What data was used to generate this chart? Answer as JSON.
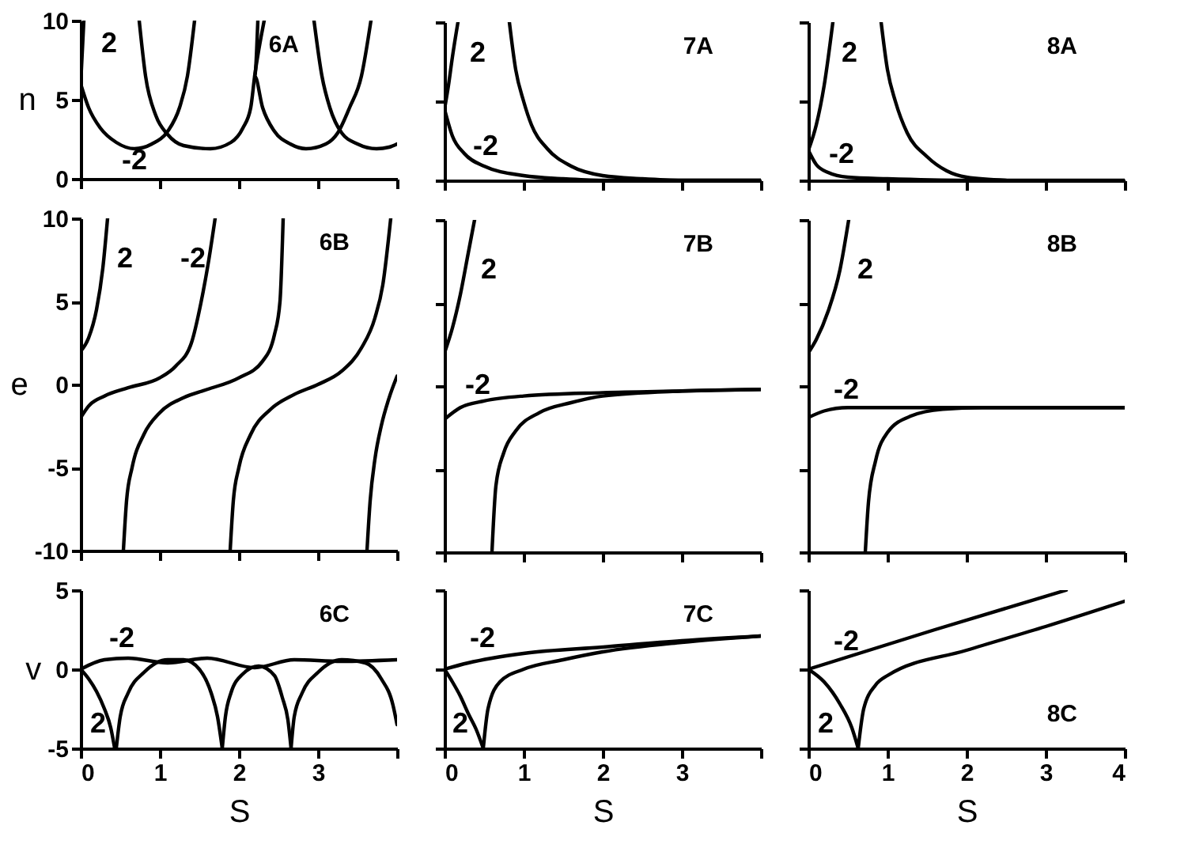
{
  "chart_data": [
    {
      "type": "line",
      "title": "6A",
      "ylabel": "n",
      "xlim": [
        0,
        4
      ],
      "ylim": [
        0,
        10
      ],
      "xticks": [
        0,
        1,
        2,
        3,
        4
      ],
      "yticks": [
        0,
        5,
        10
      ],
      "tick_labels": "y",
      "series": [
        {
          "name": "2",
          "color": "#000000",
          "x": [
            0,
            0.02,
            0.04
          ],
          "values": [
            6,
            8,
            10
          ]
        },
        {
          "name": "-2",
          "color": "#000000",
          "x": [
            0,
            0.1,
            0.25,
            0.45,
            0.68,
            0.9,
            1.1,
            1.25,
            1.35,
            1.44
          ],
          "values": [
            6,
            4.5,
            3.2,
            2.3,
            1.9,
            2.2,
            3,
            4.5,
            6.5,
            10
          ]
        },
        {
          "color": "#000000",
          "x": [
            0.74,
            0.82,
            0.95,
            1.1,
            1.3,
            1.64,
            1.9,
            2.05,
            2.15,
            2.2,
            2.32
          ],
          "values": [
            10,
            6.5,
            4,
            2.8,
            2.1,
            1.9,
            2.3,
            3.2,
            4.5,
            6.5,
            10
          ]
        },
        {
          "color": "#000000",
          "x": [
            2.24,
            2.2,
            2.3,
            2.45,
            2.65,
            2.85,
            3.1,
            3.25,
            3.4,
            3.55,
            3.67
          ],
          "values": [
            10,
            6.5,
            4.5,
            3,
            2.2,
            1.9,
            2.2,
            2.9,
            4.5,
            6.5,
            10
          ]
        },
        {
          "color": "#000000",
          "x": [
            2.95,
            3.05,
            3.15,
            3.3,
            3.5,
            3.74,
            3.9,
            4
          ],
          "values": [
            10,
            6.5,
            4.5,
            2.9,
            2.2,
            1.9,
            2,
            2.2
          ]
        }
      ]
    },
    {
      "type": "line",
      "title": "7A",
      "xlim": [
        0,
        4
      ],
      "ylim": [
        0,
        10
      ],
      "xticks": [
        0,
        1,
        2,
        3,
        4
      ],
      "yticks": [
        0,
        5,
        10
      ],
      "tick_labels": false,
      "series": [
        {
          "name": "2",
          "color": "#000000",
          "x": [
            0,
            0.05,
            0.1,
            0.17
          ],
          "values": [
            4.5,
            6,
            7.8,
            10
          ]
        },
        {
          "name": "-2",
          "color": "#000000",
          "x": [
            0,
            0.1,
            0.25,
            0.5,
            1,
            1.5,
            2,
            3,
            4
          ],
          "values": [
            4.5,
            2.8,
            1.7,
            0.9,
            0.3,
            0.1,
            0,
            0,
            0
          ]
        },
        {
          "color": "#000000",
          "x": [
            0.82,
            0.9,
            1,
            1.1,
            1.3,
            1.6,
            2,
            2.5,
            3,
            4
          ],
          "values": [
            10,
            7,
            5,
            3.5,
            2,
            0.9,
            0.3,
            0.1,
            0,
            0
          ]
        }
      ]
    },
    {
      "type": "line",
      "title": "8A",
      "xlim": [
        0,
        4
      ],
      "ylim": [
        0,
        10
      ],
      "xticks": [
        0,
        1,
        2,
        3,
        4
      ],
      "yticks": [
        0,
        5,
        10
      ],
      "tick_labels": false,
      "series": [
        {
          "name": "2",
          "color": "#000000",
          "x": [
            0,
            0.1,
            0.2,
            0.31
          ],
          "values": [
            1.9,
            3.5,
            6,
            10
          ]
        },
        {
          "name": "-2",
          "color": "#000000",
          "x": [
            0,
            0.1,
            0.25,
            0.5,
            1,
            2,
            4
          ],
          "values": [
            1.9,
            1,
            0.5,
            0.2,
            0.1,
            0,
            0
          ]
        },
        {
          "color": "#000000",
          "x": [
            0.92,
            1,
            1.1,
            1.25,
            1.5,
            1.75,
            2,
            2.5
          ],
          "values": [
            10,
            7,
            5,
            3,
            1.5,
            0.6,
            0.2,
            0
          ]
        }
      ]
    },
    {
      "type": "line",
      "title": "6B",
      "ylabel": "e",
      "xlim": [
        0,
        4
      ],
      "ylim": [
        -10,
        10
      ],
      "xticks": [
        0,
        1,
        2,
        3,
        4
      ],
      "yticks": [
        -10,
        -5,
        0,
        5,
        10
      ],
      "tick_labels": "y",
      "series": [
        {
          "name": "2",
          "color": "#000000",
          "x": [
            0,
            0.1,
            0.2,
            0.28,
            0.34
          ],
          "values": [
            2,
            2.8,
            4.5,
            7,
            10
          ]
        },
        {
          "name": "-2",
          "color": "#000000",
          "x": [
            0,
            0.1,
            0.3,
            0.6,
            1,
            1.2,
            1.4,
            1.52,
            1.62,
            1.7
          ],
          "values": [
            -2,
            -1.3,
            -0.7,
            -0.2,
            0.4,
            1.1,
            2.5,
            4.9,
            7.5,
            10
          ]
        },
        {
          "color": "#000000",
          "x": [
            0.54,
            0.58,
            0.65,
            0.8,
            1,
            1.3,
            1.6,
            2,
            2.3,
            2.45,
            2.52,
            2.56
          ],
          "values": [
            -10,
            -7,
            -5,
            -3,
            -1.7,
            -0.8,
            -0.3,
            0.4,
            1.4,
            3,
            5,
            10
          ]
        },
        {
          "color": "#000000",
          "x": [
            1.89,
            1.93,
            2,
            2.15,
            2.4,
            2.7,
            3,
            3.3,
            3.55,
            3.72,
            3.82,
            3.92
          ],
          "values": [
            -10,
            -7,
            -5,
            -3,
            -1.5,
            -0.6,
            0,
            0.8,
            2.2,
            4,
            6,
            10
          ]
        },
        {
          "color": "#000000",
          "x": [
            3.62,
            3.66,
            3.72,
            3.8,
            3.9,
            4
          ],
          "values": [
            -10,
            -7,
            -4.5,
            -2.5,
            -0.8,
            0.5
          ]
        }
      ]
    },
    {
      "type": "line",
      "title": "7B",
      "xlim": [
        0,
        4
      ],
      "ylim": [
        -10,
        10
      ],
      "xticks": [
        0,
        1,
        2,
        3,
        4
      ],
      "yticks": [
        -10,
        -5,
        0,
        5,
        10
      ],
      "tick_labels": false,
      "series": [
        {
          "name": "2",
          "color": "#000000",
          "x": [
            0,
            0.1,
            0.2,
            0.3,
            0.38
          ],
          "values": [
            2,
            3.5,
            5.5,
            8,
            10
          ]
        },
        {
          "name": "-2",
          "color": "#000000",
          "x": [
            0,
            0.2,
            0.5,
            1,
            2,
            3,
            4
          ],
          "values": [
            -2,
            -1.3,
            -0.9,
            -0.6,
            -0.4,
            -0.3,
            -0.2
          ]
        },
        {
          "color": "#000000",
          "x": [
            0.6,
            0.65,
            0.75,
            0.9,
            1.2,
            1.6,
            2,
            3,
            4
          ],
          "values": [
            -10,
            -6,
            -4,
            -2.7,
            -1.6,
            -1,
            -0.6,
            -0.3,
            -0.2
          ]
        }
      ]
    },
    {
      "type": "line",
      "title": "8B",
      "xlim": [
        0,
        4
      ],
      "ylim": [
        -10,
        10
      ],
      "xticks": [
        0,
        1,
        2,
        3,
        4
      ],
      "yticks": [
        -10,
        -5,
        0,
        5,
        10
      ],
      "tick_labels": false,
      "series": [
        {
          "name": "2",
          "color": "#000000",
          "x": [
            0,
            0.1,
            0.25,
            0.4,
            0.51
          ],
          "values": [
            2,
            2.8,
            4.5,
            7,
            10
          ]
        },
        {
          "name": "-2",
          "color": "#000000",
          "x": [
            0,
            0.2,
            0.5,
            1,
            4
          ],
          "values": [
            -1.9,
            -1.5,
            -1.3,
            -1.3,
            -1.3
          ]
        },
        {
          "color": "#000000",
          "x": [
            0.72,
            0.76,
            0.85,
            1,
            1.3,
            1.7,
            2.2,
            4
          ],
          "values": [
            -10,
            -7,
            -4.5,
            -2.8,
            -1.8,
            -1.4,
            -1.3,
            -1.3
          ]
        }
      ]
    },
    {
      "type": "line",
      "title": "6C",
      "xlabel": "S",
      "ylabel": "v",
      "xlim": [
        0,
        4
      ],
      "ylim": [
        -5,
        5
      ],
      "xticks": [
        0,
        1,
        2,
        3,
        {
          "value": 4,
          "label": null
        }
      ],
      "yticks": [
        -5,
        0,
        5
      ],
      "series": [
        {
          "name": "2",
          "color": "#000000",
          "x": [
            0,
            0.1,
            0.2,
            0.3,
            0.38,
            0.43
          ],
          "values": [
            0,
            -0.6,
            -1.4,
            -2.5,
            -3.7,
            -5
          ]
        },
        {
          "name": "-2",
          "color": "#000000",
          "x": [
            0,
            0.3,
            0.6,
            1.1,
            1.6,
            2.2,
            2.7,
            3.3,
            4
          ],
          "values": [
            0,
            0.6,
            0.7,
            0.4,
            0.7,
            0.1,
            0.6,
            0.5,
            0.6
          ]
        },
        {
          "color": "#000000",
          "x": [
            0.45,
            0.5,
            0.6,
            0.8,
            1.1,
            1.3,
            1.5,
            1.65,
            1.73,
            1.79
          ],
          "values": [
            -5,
            -3,
            -1.5,
            -0.2,
            0.6,
            0.6,
            0,
            -1.5,
            -3,
            -5
          ]
        },
        {
          "color": "#000000",
          "x": [
            1.79,
            1.83,
            1.9,
            2.05,
            2.25,
            2.45,
            2.55,
            2.62,
            2.66
          ],
          "values": [
            -5,
            -3,
            -1.5,
            -0.3,
            0.2,
            -0.4,
            -1.8,
            -3.2,
            -5
          ]
        },
        {
          "color": "#000000",
          "x": [
            2.66,
            2.7,
            2.8,
            3,
            3.3,
            3.6,
            3.8,
            3.95,
            4
          ],
          "values": [
            -5,
            -3,
            -1.5,
            -0.2,
            0.6,
            0.4,
            -0.6,
            -2.3,
            -3.5
          ]
        }
      ]
    },
    {
      "type": "line",
      "title": "7C",
      "xlabel": "S",
      "xlim": [
        0,
        4
      ],
      "ylim": [
        -5,
        5
      ],
      "xticks": [
        0,
        1,
        2,
        3,
        {
          "value": 4,
          "label": null
        }
      ],
      "yticks": [
        -5,
        0,
        5
      ],
      "tick_labels": "x",
      "series": [
        {
          "name": "-2",
          "color": "#000000",
          "x": [
            0,
            0.3,
            0.6,
            1,
            2,
            3,
            4
          ],
          "values": [
            0,
            0.4,
            0.7,
            1,
            1.4,
            1.8,
            2.1
          ]
        },
        {
          "name": "2",
          "color": "#000000",
          "x": [
            0,
            0.1,
            0.2,
            0.3,
            0.4,
            0.49
          ],
          "values": [
            0,
            -0.8,
            -1.7,
            -2.8,
            -3.8,
            -5
          ]
        },
        {
          "color": "#000000",
          "x": [
            0.49,
            0.55,
            0.7,
            1,
            1.5,
            2,
            3,
            4
          ],
          "values": [
            -5,
            -2.5,
            -0.8,
            0,
            0.6,
            1.1,
            1.7,
            2.1
          ]
        }
      ]
    },
    {
      "type": "line",
      "title": "8C",
      "xlabel": "S",
      "xlim": [
        0,
        4
      ],
      "ylim": [
        -5,
        5
      ],
      "xticks": [
        0,
        1,
        2,
        3,
        4
      ],
      "yticks": [
        -5,
        0,
        5
      ],
      "tick_labels": "x",
      "series": [
        {
          "name": "-2",
          "color": "#000000",
          "x": [
            0,
            1.6,
            3.26
          ],
          "values": [
            0,
            2.5,
            5
          ]
        },
        {
          "name": "2",
          "color": "#000000",
          "x": [
            0,
            0.2,
            0.4,
            0.55,
            0.63
          ],
          "values": [
            0,
            -0.8,
            -2.2,
            -3.7,
            -5
          ]
        },
        {
          "color": "#000000",
          "x": [
            0.63,
            0.7,
            0.85,
            1,
            2,
            3,
            4
          ],
          "values": [
            -5,
            -2.5,
            -1,
            -0.4,
            1.2,
            2.7,
            4.3
          ]
        }
      ]
    }
  ]
}
